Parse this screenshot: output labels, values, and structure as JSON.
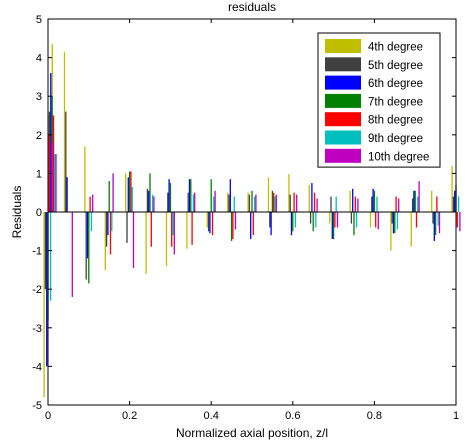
{
  "chart_data": {
    "type": "bar",
    "title": "residuals",
    "xlabel": "Normalized axial position, z/l",
    "ylabel": "Residuals",
    "xlim": [
      0,
      1
    ],
    "ylim": [
      -5,
      5
    ],
    "xticks": [
      0,
      0.2,
      0.4,
      0.6,
      0.8,
      1
    ],
    "xtick_labels": [
      "0",
      "0.2",
      "0.4",
      "0.6",
      "0.8",
      "1"
    ],
    "yticks": [
      -5,
      -4,
      -3,
      -2,
      -1,
      0,
      1,
      2,
      3,
      4,
      5
    ],
    "ytick_labels": [
      "-5",
      "-4",
      "-3",
      "-2",
      "-1",
      "0",
      "1",
      "2",
      "3",
      "4",
      "5"
    ],
    "grid": false,
    "legend_position": "top-right",
    "x": [
      0,
      0.01,
      0.02,
      0.05,
      0.1,
      0.15,
      0.2,
      0.25,
      0.3,
      0.35,
      0.4,
      0.45,
      0.5,
      0.55,
      0.6,
      0.65,
      0.7,
      0.75,
      0.8,
      0.85,
      0.9,
      0.95,
      1
    ],
    "series": [
      {
        "name": "4th degree",
        "color": "#bfbf00",
        "values": [
          -4.8,
          2.5,
          4.35,
          4.15,
          1.7,
          -1.5,
          1.0,
          -1.6,
          -1.4,
          -0.95,
          -0.4,
          0.5,
          0.5,
          0.9,
          0.98,
          0.7,
          -0.3,
          0.55,
          -0.4,
          -1.0,
          -0.9,
          0.55,
          1.2
        ]
      },
      {
        "name": "5th degree",
        "color": "#404040",
        "values": [
          -2.0,
          2.6,
          2.5,
          2.6,
          -1.75,
          -0.9,
          -0.8,
          0.6,
          0.5,
          0.5,
          -0.5,
          0.45,
          0.45,
          -0.4,
          0.45,
          -0.3,
          0.4,
          -0.3,
          0.4,
          -0.3,
          0.35,
          -0.3,
          0.4
        ]
      },
      {
        "name": "6th degree",
        "color": "#0000ff",
        "values": [
          -4.0,
          3.6,
          0.0,
          0.9,
          -1.2,
          -0.6,
          0.9,
          0.55,
          0.85,
          0.85,
          -0.55,
          0.85,
          -0.7,
          -0.6,
          -0.6,
          0.75,
          -0.7,
          0.6,
          0.6,
          -0.55,
          0.55,
          -0.75,
          0.55
        ]
      },
      {
        "name": "7th degree",
        "color": "#008000",
        "values": [
          -2.8,
          3.0,
          0.0,
          0.0,
          -1.85,
          0.8,
          1.05,
          1.0,
          0.75,
          0.85,
          0.85,
          -0.75,
          0.55,
          0.55,
          -0.5,
          -0.5,
          -0.7,
          -0.6,
          0.55,
          -0.55,
          0.55,
          -0.6,
          0.7
        ]
      },
      {
        "name": "8th degree",
        "color": "#ff0000",
        "values": [
          2.0,
          2.5,
          0.0,
          0.0,
          0.4,
          -1.1,
          1.05,
          -0.9,
          -0.9,
          -0.85,
          -0.6,
          -0.7,
          -0.6,
          0.5,
          0.5,
          0.5,
          -0.4,
          0.4,
          -0.4,
          0.4,
          -0.4,
          0.4,
          -0.4
        ]
      },
      {
        "name": "9th degree",
        "color": "#00bfbf",
        "values": [
          -2.3,
          1.5,
          0.0,
          0.0,
          -0.5,
          -0.5,
          0.65,
          0.45,
          -0.6,
          0.45,
          0.4,
          0.4,
          0.4,
          0.4,
          -0.4,
          -0.4,
          0.4,
          -0.4,
          0.4,
          -0.45,
          0.4,
          -0.35,
          0.4
        ]
      },
      {
        "name": "10th degree",
        "color": "#bf00bf",
        "values": [
          1.8,
          1.5,
          0.0,
          -2.2,
          0.45,
          1.0,
          -1.45,
          0.4,
          -1.1,
          0.5,
          0.55,
          -0.45,
          0.45,
          0.45,
          0.45,
          0.35,
          -0.4,
          0.35,
          -0.45,
          0.35,
          0.8,
          -0.55,
          -0.5
        ]
      }
    ]
  }
}
